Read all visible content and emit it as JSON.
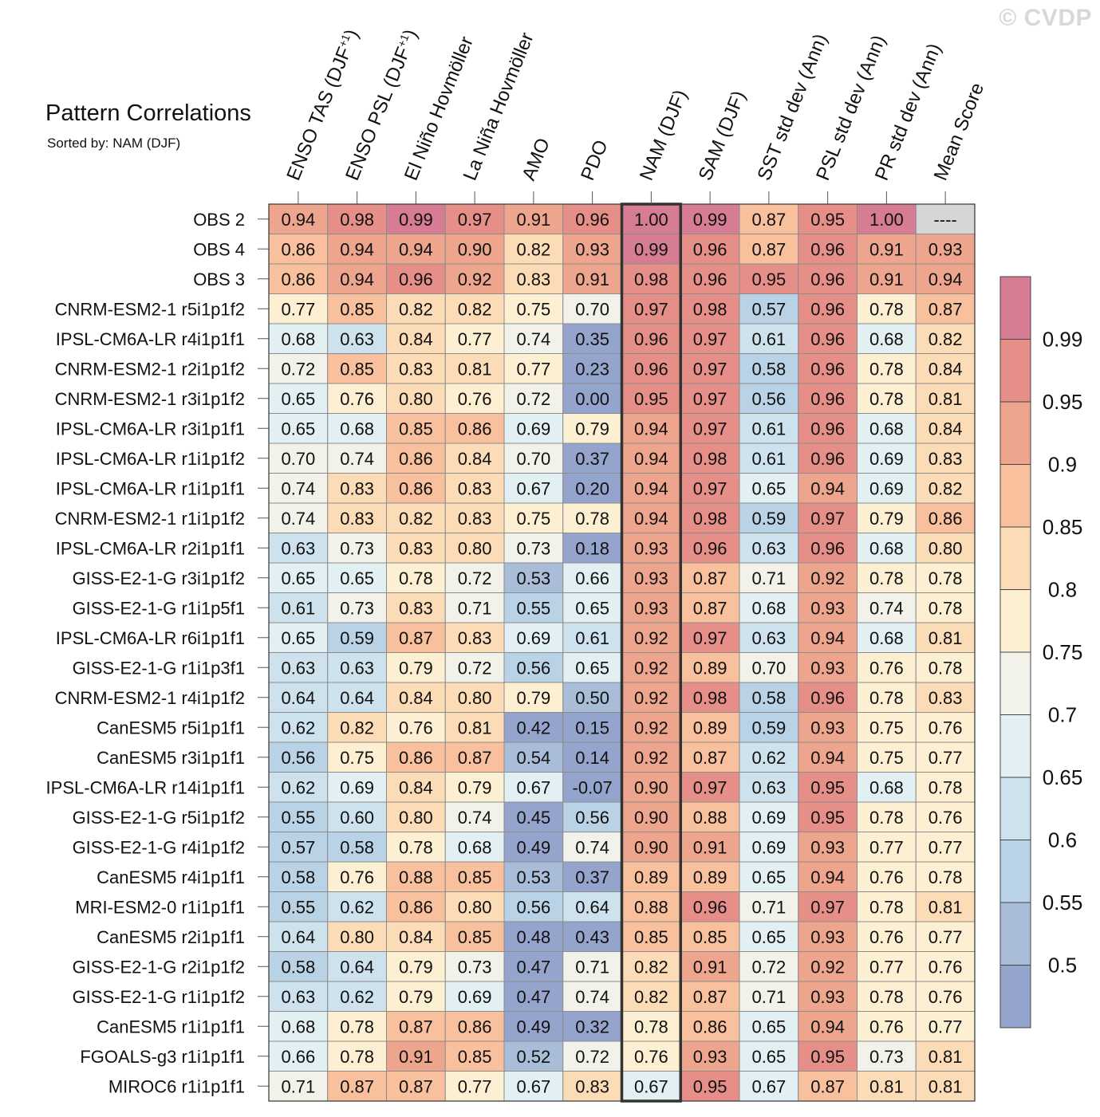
{
  "watermark": "© CVDP",
  "chart_data": {
    "type": "heatmap",
    "title": "Pattern Correlations",
    "subtitle": "Sorted by: NAM (DJF)",
    "highlighted_column": "NAM (DJF)",
    "columns": [
      {
        "label": "ENSO TAS (DJF",
        "sup": "+1",
        "close": ")"
      },
      {
        "label": "ENSO PSL (DJF",
        "sup": "+1",
        "close": ")"
      },
      {
        "label": "El Niño Hovmöller",
        "sup": "",
        "close": ""
      },
      {
        "label": "La Niña Hovmöller",
        "sup": "",
        "close": ""
      },
      {
        "label": "AMO",
        "sup": "",
        "close": ""
      },
      {
        "label": "PDO",
        "sup": "",
        "close": ""
      },
      {
        "label": "NAM (DJF)",
        "sup": "",
        "close": ""
      },
      {
        "label": "SAM (DJF)",
        "sup": "",
        "close": ""
      },
      {
        "label": "SST std dev (Ann)",
        "sup": "",
        "close": ""
      },
      {
        "label": "PSL std dev (Ann)",
        "sup": "",
        "close": ""
      },
      {
        "label": "PR std dev (Ann)",
        "sup": "",
        "close": ""
      },
      {
        "label": "Mean Score",
        "sup": "",
        "close": ""
      }
    ],
    "rows": [
      {
        "name": "OBS 2",
        "values": [
          "0.94",
          "0.98",
          "0.99",
          "0.97",
          "0.91",
          "0.96",
          "1.00",
          "0.99",
          "0.87",
          "0.95",
          "1.00",
          "----"
        ]
      },
      {
        "name": "OBS 4",
        "values": [
          "0.86",
          "0.94",
          "0.94",
          "0.90",
          "0.82",
          "0.93",
          "0.99",
          "0.96",
          "0.87",
          "0.96",
          "0.91",
          "0.93"
        ]
      },
      {
        "name": "OBS 3",
        "values": [
          "0.86",
          "0.94",
          "0.96",
          "0.92",
          "0.83",
          "0.91",
          "0.98",
          "0.96",
          "0.95",
          "0.96",
          "0.91",
          "0.94"
        ]
      },
      {
        "name": "CNRM-ESM2-1 r5i1p1f2",
        "values": [
          "0.77",
          "0.85",
          "0.82",
          "0.82",
          "0.75",
          "0.70",
          "0.97",
          "0.98",
          "0.57",
          "0.96",
          "0.78",
          "0.87"
        ]
      },
      {
        "name": "IPSL-CM6A-LR r4i1p1f1",
        "values": [
          "0.68",
          "0.63",
          "0.84",
          "0.77",
          "0.74",
          "0.35",
          "0.96",
          "0.97",
          "0.61",
          "0.96",
          "0.68",
          "0.82"
        ]
      },
      {
        "name": "CNRM-ESM2-1 r2i1p1f2",
        "values": [
          "0.72",
          "0.85",
          "0.83",
          "0.81",
          "0.77",
          "0.23",
          "0.96",
          "0.97",
          "0.58",
          "0.96",
          "0.78",
          "0.84"
        ]
      },
      {
        "name": "CNRM-ESM2-1 r3i1p1f2",
        "values": [
          "0.65",
          "0.76",
          "0.80",
          "0.76",
          "0.72",
          "0.00",
          "0.95",
          "0.97",
          "0.56",
          "0.96",
          "0.78",
          "0.81"
        ]
      },
      {
        "name": "IPSL-CM6A-LR r3i1p1f1",
        "values": [
          "0.65",
          "0.68",
          "0.85",
          "0.86",
          "0.69",
          "0.79",
          "0.94",
          "0.97",
          "0.61",
          "0.96",
          "0.68",
          "0.84"
        ]
      },
      {
        "name": "IPSL-CM6A-LR r1i1p1f2",
        "values": [
          "0.70",
          "0.74",
          "0.86",
          "0.84",
          "0.70",
          "0.37",
          "0.94",
          "0.98",
          "0.61",
          "0.96",
          "0.69",
          "0.83"
        ]
      },
      {
        "name": "IPSL-CM6A-LR r1i1p1f1",
        "values": [
          "0.74",
          "0.83",
          "0.86",
          "0.83",
          "0.67",
          "0.20",
          "0.94",
          "0.97",
          "0.65",
          "0.94",
          "0.69",
          "0.82"
        ]
      },
      {
        "name": "CNRM-ESM2-1 r1i1p1f2",
        "values": [
          "0.74",
          "0.83",
          "0.82",
          "0.83",
          "0.75",
          "0.78",
          "0.94",
          "0.98",
          "0.59",
          "0.97",
          "0.79",
          "0.86"
        ]
      },
      {
        "name": "IPSL-CM6A-LR r2i1p1f1",
        "values": [
          "0.63",
          "0.73",
          "0.83",
          "0.80",
          "0.73",
          "0.18",
          "0.93",
          "0.96",
          "0.63",
          "0.96",
          "0.68",
          "0.80"
        ]
      },
      {
        "name": "GISS-E2-1-G r3i1p1f2",
        "values": [
          "0.65",
          "0.65",
          "0.78",
          "0.72",
          "0.53",
          "0.66",
          "0.93",
          "0.87",
          "0.71",
          "0.92",
          "0.78",
          "0.78"
        ]
      },
      {
        "name": "GISS-E2-1-G r1i1p5f1",
        "values": [
          "0.61",
          "0.73",
          "0.83",
          "0.71",
          "0.55",
          "0.65",
          "0.93",
          "0.87",
          "0.68",
          "0.93",
          "0.74",
          "0.78"
        ]
      },
      {
        "name": "IPSL-CM6A-LR r6i1p1f1",
        "values": [
          "0.65",
          "0.59",
          "0.87",
          "0.83",
          "0.69",
          "0.61",
          "0.92",
          "0.97",
          "0.63",
          "0.94",
          "0.68",
          "0.81"
        ]
      },
      {
        "name": "GISS-E2-1-G r1i1p3f1",
        "values": [
          "0.63",
          "0.63",
          "0.79",
          "0.72",
          "0.56",
          "0.65",
          "0.92",
          "0.89",
          "0.70",
          "0.93",
          "0.76",
          "0.78"
        ]
      },
      {
        "name": "CNRM-ESM2-1 r4i1p1f2",
        "values": [
          "0.64",
          "0.64",
          "0.84",
          "0.80",
          "0.79",
          "0.50",
          "0.92",
          "0.98",
          "0.58",
          "0.96",
          "0.78",
          "0.83"
        ]
      },
      {
        "name": "CanESM5 r5i1p1f1",
        "values": [
          "0.62",
          "0.82",
          "0.76",
          "0.81",
          "0.42",
          "0.15",
          "0.92",
          "0.89",
          "0.59",
          "0.93",
          "0.75",
          "0.76"
        ]
      },
      {
        "name": "CanESM5 r3i1p1f1",
        "values": [
          "0.56",
          "0.75",
          "0.86",
          "0.87",
          "0.54",
          "0.14",
          "0.92",
          "0.87",
          "0.62",
          "0.94",
          "0.75",
          "0.77"
        ]
      },
      {
        "name": "IPSL-CM6A-LR r14i1p1f1",
        "values": [
          "0.62",
          "0.69",
          "0.84",
          "0.79",
          "0.67",
          "-0.07",
          "0.90",
          "0.97",
          "0.63",
          "0.95",
          "0.68",
          "0.78"
        ]
      },
      {
        "name": "GISS-E2-1-G r5i1p1f2",
        "values": [
          "0.55",
          "0.60",
          "0.80",
          "0.74",
          "0.45",
          "0.56",
          "0.90",
          "0.88",
          "0.69",
          "0.95",
          "0.78",
          "0.76"
        ]
      },
      {
        "name": "GISS-E2-1-G r4i1p1f2",
        "values": [
          "0.57",
          "0.58",
          "0.78",
          "0.68",
          "0.49",
          "0.74",
          "0.90",
          "0.91",
          "0.69",
          "0.93",
          "0.77",
          "0.77"
        ]
      },
      {
        "name": "CanESM5 r4i1p1f1",
        "values": [
          "0.58",
          "0.76",
          "0.88",
          "0.85",
          "0.53",
          "0.37",
          "0.89",
          "0.89",
          "0.65",
          "0.94",
          "0.76",
          "0.78"
        ]
      },
      {
        "name": "MRI-ESM2-0 r1i1p1f1",
        "values": [
          "0.55",
          "0.62",
          "0.86",
          "0.80",
          "0.56",
          "0.64",
          "0.88",
          "0.96",
          "0.71",
          "0.97",
          "0.78",
          "0.81"
        ]
      },
      {
        "name": "CanESM5 r2i1p1f1",
        "values": [
          "0.64",
          "0.80",
          "0.84",
          "0.85",
          "0.48",
          "0.43",
          "0.85",
          "0.85",
          "0.65",
          "0.93",
          "0.76",
          "0.77"
        ]
      },
      {
        "name": "GISS-E2-1-G r2i1p1f2",
        "values": [
          "0.58",
          "0.64",
          "0.79",
          "0.73",
          "0.47",
          "0.71",
          "0.82",
          "0.91",
          "0.72",
          "0.92",
          "0.77",
          "0.76"
        ]
      },
      {
        "name": "GISS-E2-1-G r1i1p1f2",
        "values": [
          "0.63",
          "0.62",
          "0.79",
          "0.69",
          "0.47",
          "0.74",
          "0.82",
          "0.87",
          "0.71",
          "0.93",
          "0.78",
          "0.76"
        ]
      },
      {
        "name": "CanESM5 r1i1p1f1",
        "values": [
          "0.68",
          "0.78",
          "0.87",
          "0.86",
          "0.49",
          "0.32",
          "0.78",
          "0.86",
          "0.65",
          "0.94",
          "0.76",
          "0.77"
        ]
      },
      {
        "name": "FGOALS-g3 r1i1p1f1",
        "values": [
          "0.66",
          "0.78",
          "0.91",
          "0.85",
          "0.52",
          "0.72",
          "0.76",
          "0.93",
          "0.65",
          "0.95",
          "0.73",
          "0.81"
        ]
      },
      {
        "name": "MIROC6 r1i1p1f1",
        "values": [
          "0.71",
          "0.87",
          "0.87",
          "0.77",
          "0.67",
          "0.83",
          "0.67",
          "0.95",
          "0.67",
          "0.87",
          "0.81",
          "0.81"
        ]
      }
    ],
    "colorbar": {
      "levels": [
        0.5,
        0.55,
        0.6,
        0.65,
        0.7,
        0.75,
        0.8,
        0.85,
        0.9,
        0.95,
        0.99
      ],
      "tick_labels": [
        "0.5",
        "0.55",
        "0.6",
        "0.65",
        "0.7",
        "0.75",
        "0.8",
        "0.85",
        "0.9",
        "0.95",
        "0.99"
      ],
      "colors": [
        "#95a4cc",
        "#a9bdd9",
        "#bad2e5",
        "#cde2ed",
        "#e2eff3",
        "#f2f2ea",
        "#fcefd2",
        "#fbdcb6",
        "#f8c09d",
        "#eea58e",
        "#e68f89",
        "#d77d93"
      ],
      "missing_color": "#d6d6d6"
    }
  }
}
